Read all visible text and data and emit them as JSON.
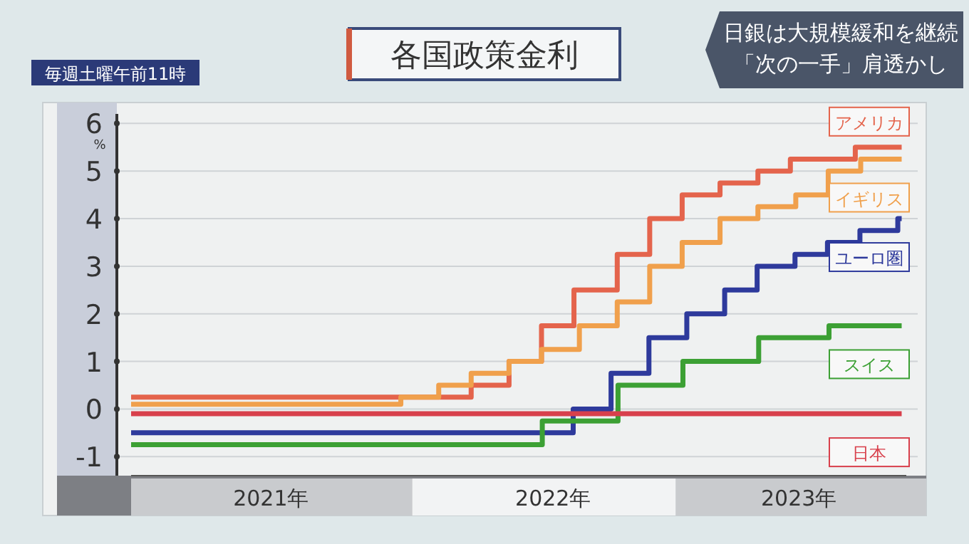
{
  "chart_data": {
    "type": "step",
    "title": "各国政策金利",
    "subtitle": "日銀は大規模緩和を継続「次の一手」肩透かし",
    "annotations": [
      "毎週土曜午前11時"
    ],
    "ylabel": "%",
    "xlim": [
      "2021-01-01",
      "2023-10-01"
    ],
    "xticks": [
      {
        "value": "2021-07-01",
        "label": "2021年"
      },
      {
        "value": "2022-07-01",
        "label": "2022年"
      },
      {
        "value": "2023-05-15",
        "label": "2023年"
      }
    ],
    "ylim": [
      -1.4,
      6.2
    ],
    "yticks": [
      -1,
      0,
      1,
      2,
      3,
      4,
      5,
      6
    ],
    "grid": "y",
    "line_style": "solid",
    "marker": "none",
    "series": [
      {
        "name": "アメリカ",
        "color": "#e4644c",
        "x": [
          "2021-01-01",
          "2022-03-17",
          "2022-05-05",
          "2022-06-16",
          "2022-07-28",
          "2022-09-22",
          "2022-11-03",
          "2022-12-15",
          "2023-02-02",
          "2023-03-23",
          "2023-05-04",
          "2023-07-27",
          "2023-09-25"
        ],
        "values": [
          0.25,
          0.5,
          1.0,
          1.75,
          2.5,
          3.25,
          4.0,
          4.5,
          4.75,
          5.0,
          5.25,
          5.5,
          5.5
        ]
      },
      {
        "name": "イギリス",
        "color": "#f0a04c",
        "x": [
          "2021-01-01",
          "2021-12-16",
          "2022-02-03",
          "2022-03-17",
          "2022-05-05",
          "2022-06-16",
          "2022-08-04",
          "2022-09-22",
          "2022-11-03",
          "2022-12-15",
          "2023-02-02",
          "2023-03-23",
          "2023-05-11",
          "2023-06-22",
          "2023-08-03",
          "2023-09-25"
        ],
        "values": [
          0.1,
          0.25,
          0.5,
          0.75,
          1.0,
          1.25,
          1.75,
          2.25,
          3.0,
          3.5,
          4.0,
          4.25,
          4.5,
          5.0,
          5.25,
          5.25
        ]
      },
      {
        "name": "ユーロ圏",
        "color": "#2e3a9c",
        "x": [
          "2021-01-01",
          "2022-07-27",
          "2022-09-14",
          "2022-11-02",
          "2022-12-21",
          "2023-02-08",
          "2023-03-22",
          "2023-05-10",
          "2023-06-21",
          "2023-08-02",
          "2023-09-20",
          "2023-09-25"
        ],
        "values": [
          -0.5,
          0.0,
          0.75,
          1.5,
          2.0,
          2.5,
          3.0,
          3.25,
          3.5,
          3.75,
          4.0,
          4.0
        ]
      },
      {
        "name": "スイス",
        "color": "#3ca034",
        "x": [
          "2021-01-01",
          "2022-06-17",
          "2022-09-23",
          "2022-12-16",
          "2023-03-24",
          "2023-06-23",
          "2023-09-25"
        ],
        "values": [
          -0.75,
          -0.25,
          0.5,
          1.0,
          1.5,
          1.75,
          1.75
        ]
      },
      {
        "name": "日本",
        "color": "#d8404c",
        "x": [
          "2021-01-01",
          "2023-09-25"
        ],
        "values": [
          -0.1,
          -0.1
        ]
      }
    ]
  }
}
